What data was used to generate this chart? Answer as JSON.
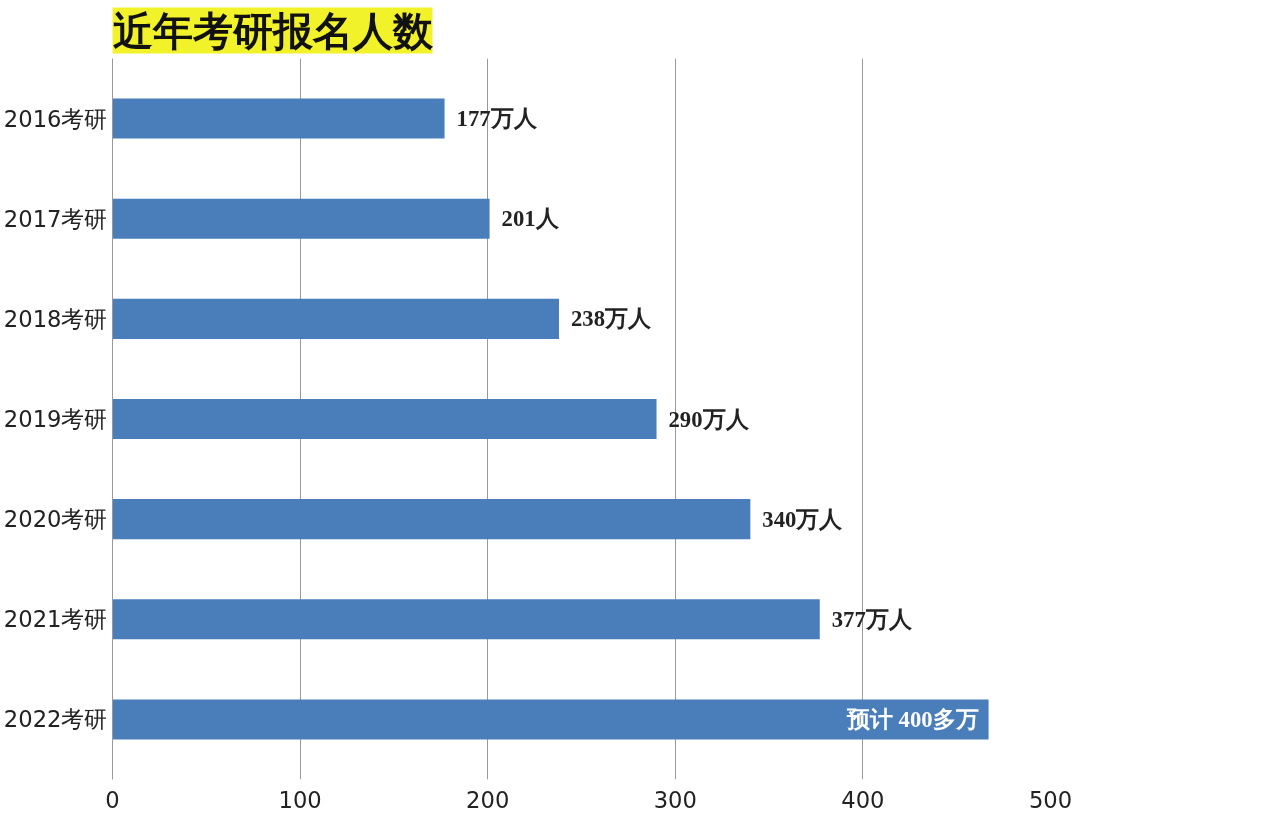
{
  "chart_data": {
    "type": "bar",
    "orientation": "horizontal",
    "title": "近年考研报名人数",
    "categories": [
      "2016考研",
      "2017考研",
      "2018考研",
      "2019考研",
      "2020考研",
      "2021考研",
      "2022考研"
    ],
    "values": [
      177,
      201,
      238,
      290,
      340,
      377,
      467
    ],
    "value_labels": [
      "177万人",
      "201人",
      "238万人",
      "290万人",
      "340万人",
      "377万人",
      "预计 400多万"
    ],
    "color": "#4a7ebb",
    "xlim": [
      0,
      500
    ],
    "xticks": [
      0,
      100,
      200,
      300,
      400,
      500
    ],
    "grid": "x"
  }
}
